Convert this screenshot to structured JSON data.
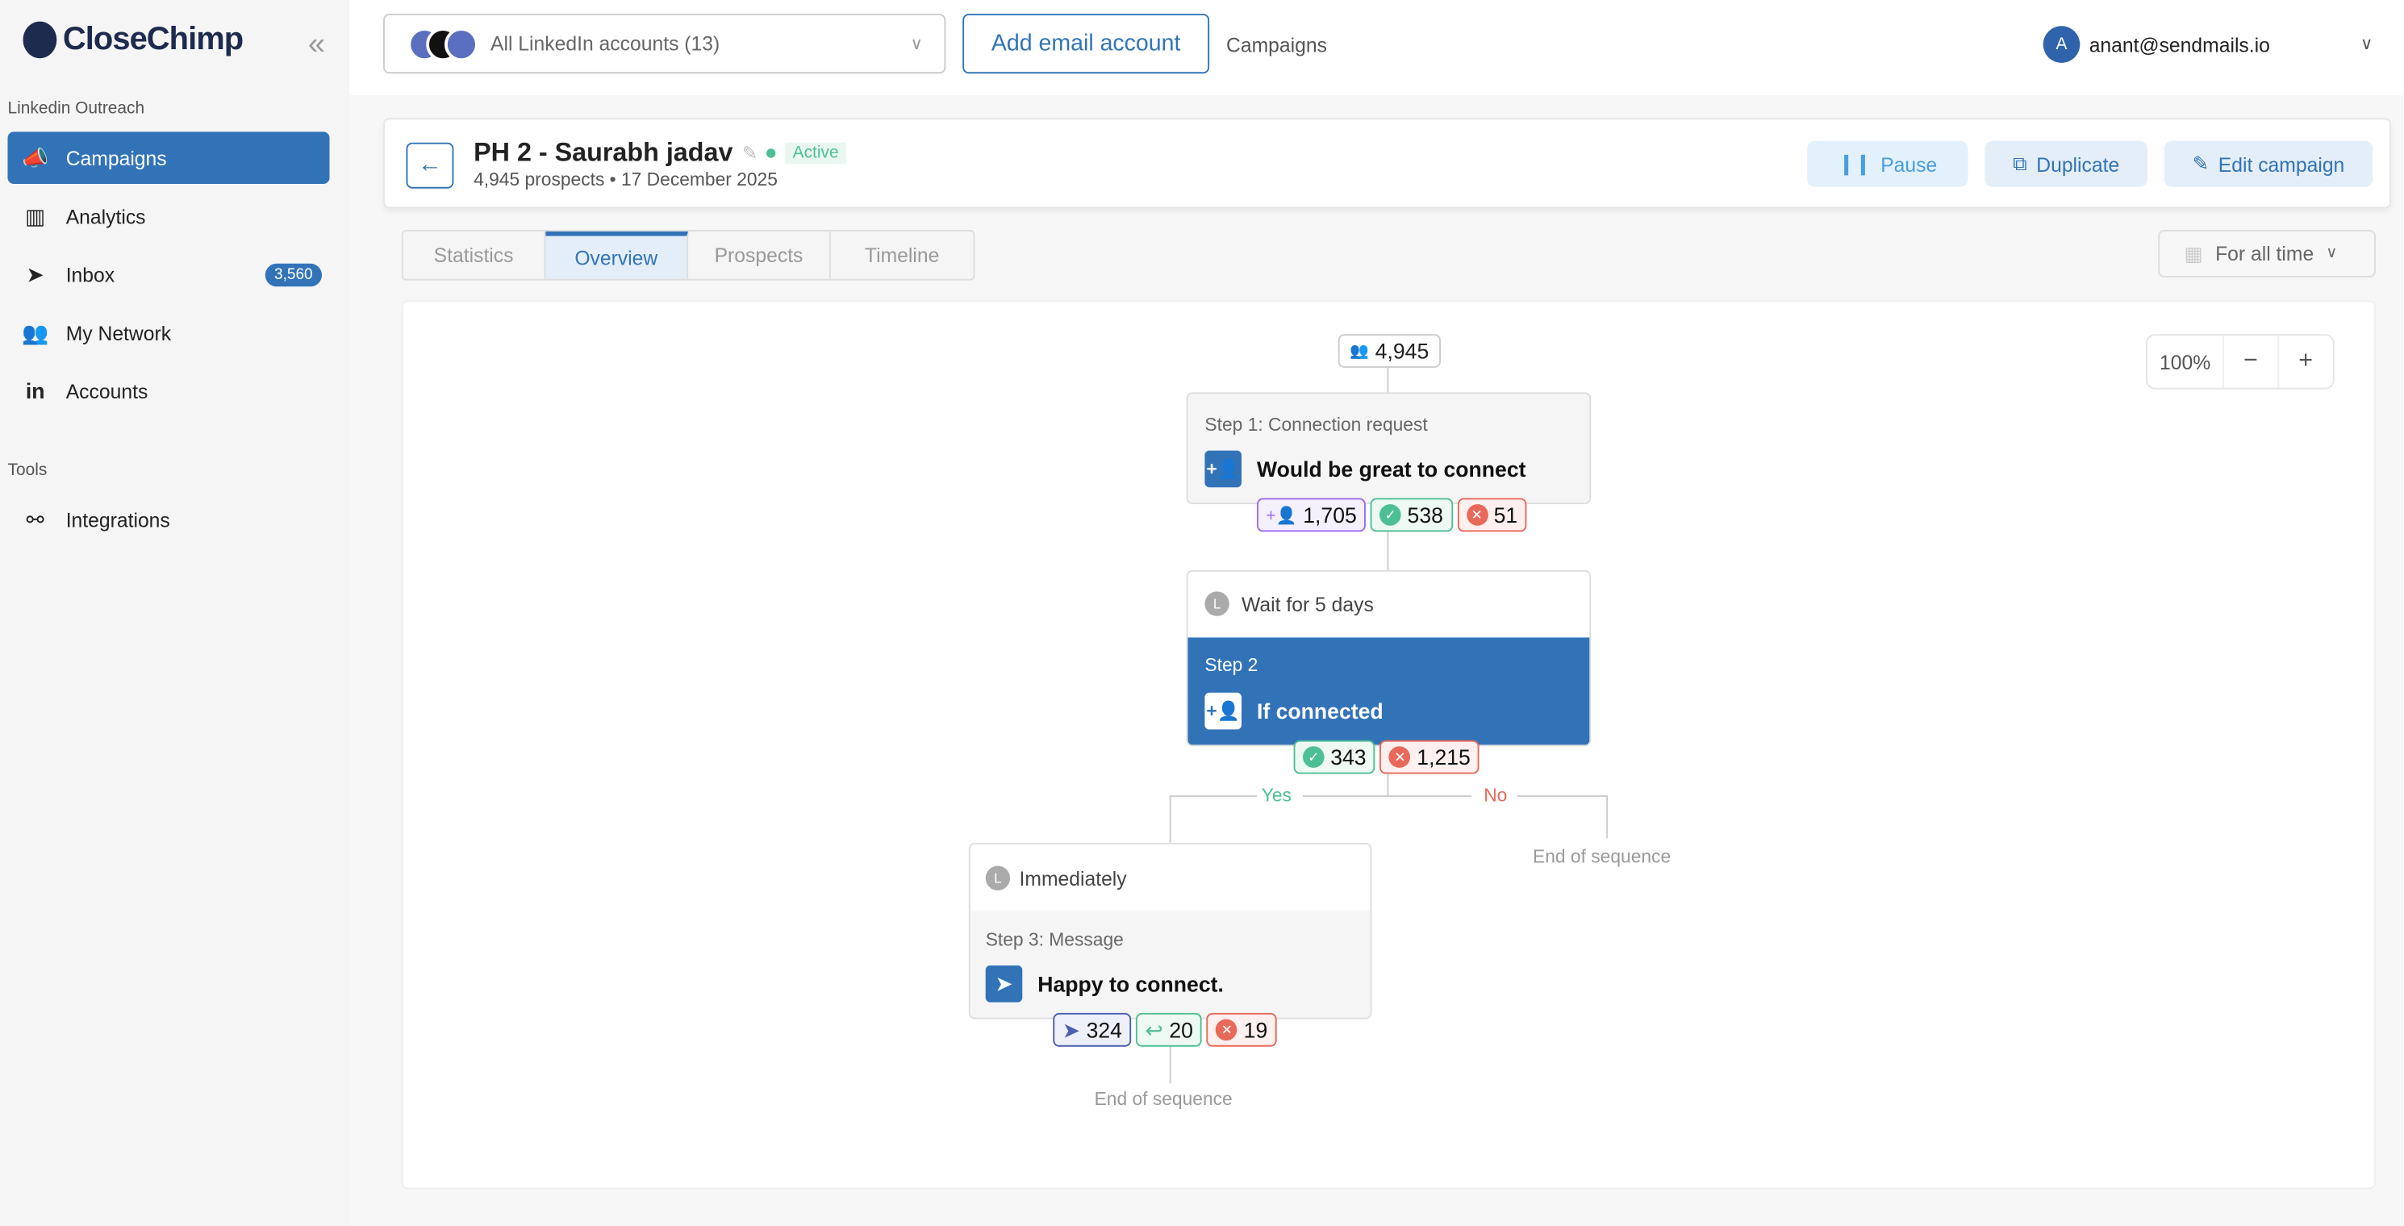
{
  "sidebar": {
    "brand": "CloseChimp",
    "section1": "Linkedin Outreach",
    "items": [
      {
        "label": "Campaigns",
        "icon": "megaphone-icon"
      },
      {
        "label": "Analytics",
        "icon": "bar-chart-icon"
      },
      {
        "label": "Inbox",
        "icon": "send-icon",
        "badge": "3,560"
      },
      {
        "label": "My Network",
        "icon": "people-icon"
      },
      {
        "label": "Accounts",
        "icon": "linkedin-icon"
      }
    ],
    "section2": "Tools",
    "tools": [
      {
        "label": "Integrations",
        "icon": "integrations-icon"
      }
    ]
  },
  "topbar": {
    "account_select": "All LinkedIn accounts (13)",
    "add_email": "Add email account",
    "breadcrumb": "Campaigns",
    "user_initial": "A",
    "user_email": "anant@sendmails.io"
  },
  "campaign": {
    "title": "PH 2 - Saurabh jadav",
    "status": "Active",
    "subtitle": "4,945 prospects • 17 December 2025",
    "pause": "Pause",
    "duplicate": "Duplicate",
    "edit": "Edit campaign"
  },
  "tabs": [
    "Statistics",
    "Overview",
    "Prospects",
    "Timeline"
  ],
  "active_tab": "Overview",
  "date_filter": "For all time",
  "zoom": {
    "level": "100%",
    "minus": "−",
    "plus": "+"
  },
  "flow": {
    "total": "4,945",
    "step1": {
      "title": "Step 1: Connection request",
      "text": "Would be great to connect",
      "stats": {
        "sent": "1,705",
        "accepted": "538",
        "failed": "51"
      }
    },
    "wait1": "Wait for 5 days",
    "step2": {
      "title": "Step 2",
      "text": "If connected",
      "stats": {
        "yes": "343",
        "no": "1,215"
      }
    },
    "yes": "Yes",
    "no": "No",
    "end": "End of sequence",
    "wait2": "Immediately",
    "step3": {
      "title": "Step 3: Message",
      "text": "Happy to connect.",
      "stats": {
        "sent": "324",
        "replied": "20",
        "failed": "19"
      }
    }
  },
  "colors": {
    "primary": "#3273b8",
    "success": "#4dbf94",
    "danger": "#e8685a",
    "purple": "#9b6bef"
  }
}
